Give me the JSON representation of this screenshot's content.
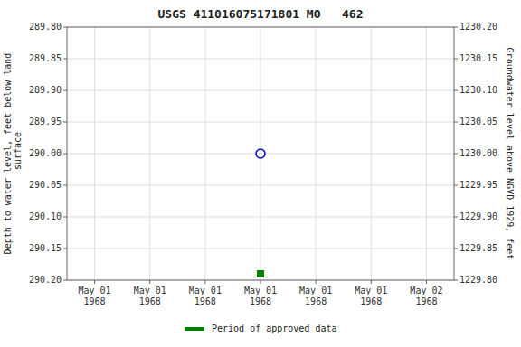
{
  "chart_data": {
    "type": "scatter",
    "title": "USGS 411016075171801 MO   462",
    "y_label": "Depth to water level, feet below land\n surface",
    "y2_label": "Groundwater level above NGVD 1929, feet",
    "categories": [
      "May 01\n1968",
      "May 01\n1968",
      "May 01\n1968",
      "May 01\n1968",
      "May 01\n1968",
      "May 01\n1968",
      "May 02\n1968"
    ],
    "series": [
      {
        "color": "#0000cc",
        "marker": "open-circle",
        "values": [
          null,
          null,
          null,
          290,
          null,
          null,
          null
        ]
      },
      {
        "color": "#008000",
        "marker": "square",
        "values": [
          null,
          null,
          null,
          290.19,
          null,
          null,
          null
        ]
      }
    ],
    "ylim": [
      290.2,
      289.8
    ],
    "yticks": [
      {
        "value": 289.8,
        "label": "289.80"
      },
      {
        "value": 289.85,
        "label": "289.85"
      },
      {
        "value": 289.9,
        "label": "289.90"
      },
      {
        "value": 289.95,
        "label": "289.95"
      },
      {
        "value": 290,
        "label": "290.00"
      },
      {
        "value": 290.05,
        "label": "290.05"
      },
      {
        "value": 290.1,
        "label": "290.10"
      },
      {
        "value": 290.15,
        "label": "290.15"
      },
      {
        "value": 290.2,
        "label": "290.20"
      }
    ],
    "y2lim": [
      1229.8,
      1230.2
    ],
    "y2ticks": [
      {
        "value": 1230.2,
        "label": "1230.20"
      },
      {
        "value": 1230.15,
        "label": "1230.15"
      },
      {
        "value": 1230.1,
        "label": "1230.10"
      },
      {
        "value": 1230.05,
        "label": "1230.05"
      },
      {
        "value": 1230,
        "label": "1230.00"
      },
      {
        "value": 1229.95,
        "label": "1229.95"
      },
      {
        "value": 1229.9,
        "label": "1229.90"
      },
      {
        "value": 1229.85,
        "label": "1229.85"
      },
      {
        "value": 1229.8,
        "label": "1229.80"
      }
    ],
    "grid": true,
    "legend": "bottom",
    "legend_entries": [
      {
        "label": "Period of approved data",
        "color": "#008000"
      }
    ]
  }
}
